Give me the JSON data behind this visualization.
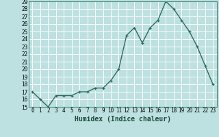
{
  "x": [
    0,
    1,
    2,
    3,
    4,
    5,
    6,
    7,
    8,
    9,
    10,
    11,
    12,
    13,
    14,
    15,
    16,
    17,
    18,
    19,
    20,
    21,
    22,
    23
  ],
  "y": [
    17,
    16,
    15,
    16.5,
    16.5,
    16.5,
    17,
    17,
    17.5,
    17.5,
    18.5,
    20,
    24.5,
    25.5,
    23.5,
    25.5,
    26.5,
    29,
    28,
    26.5,
    25,
    23,
    20.5,
    18
  ],
  "line_color": "#2e6b5e",
  "marker_color": "#2e6b5e",
  "bg_color": "#bde0e0",
  "grid_color": "#ffffff",
  "xlabel": "Humidex (Indice chaleur)",
  "ylim": [
    15,
    29
  ],
  "xlim": [
    -0.5,
    23.5
  ],
  "yticks": [
    15,
    16,
    17,
    18,
    19,
    20,
    21,
    22,
    23,
    24,
    25,
    26,
    27,
    28,
    29
  ],
  "xticks": [
    0,
    1,
    2,
    3,
    4,
    5,
    6,
    7,
    8,
    9,
    10,
    11,
    12,
    13,
    14,
    15,
    16,
    17,
    18,
    19,
    20,
    21,
    22,
    23
  ],
  "tick_fontsize": 5.5,
  "xlabel_fontsize": 7,
  "marker_size": 3,
  "line_width": 1.0
}
